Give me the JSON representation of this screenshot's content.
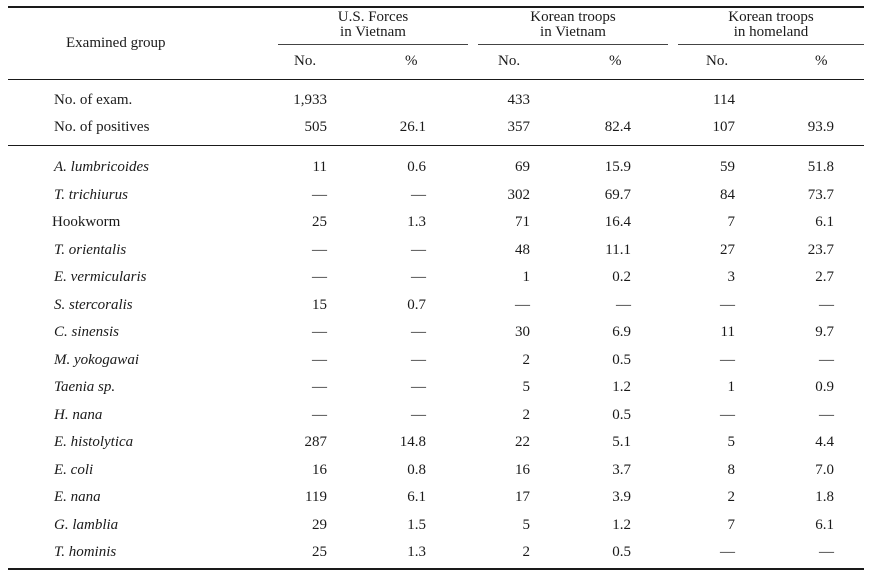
{
  "header": {
    "examined_group": "Examined group",
    "groups": [
      {
        "line1": "U.S. Forces",
        "line2": "in Vietnam"
      },
      {
        "line1": "Korean troops",
        "line2": "in Vietnam"
      },
      {
        "line1": "Korean troops",
        "line2": "in homeland"
      }
    ],
    "no_label": "No.",
    "pct_label": "%"
  },
  "summary_rows": [
    {
      "label": "No. of exam.",
      "cells": [
        "1,933",
        "",
        "433",
        "",
        "114",
        ""
      ]
    },
    {
      "label": "No. of positives",
      "cells": [
        "505",
        "26.1",
        "357",
        "82.4",
        "107",
        "93.9"
      ]
    }
  ],
  "parasite_rows": [
    {
      "label": "A. lumbricoides",
      "italic": true,
      "cells": [
        "11",
        "0.6",
        "69",
        "15.9",
        "59",
        "51.8"
      ]
    },
    {
      "label": "T. trichiurus",
      "italic": true,
      "cells": [
        "—",
        "—",
        "302",
        "69.7",
        "84",
        "73.7"
      ]
    },
    {
      "label": "Hookworm",
      "italic": false,
      "cells": [
        "25",
        "1.3",
        "71",
        "16.4",
        "7",
        "6.1"
      ]
    },
    {
      "label": "T. orientalis",
      "italic": true,
      "cells": [
        "—",
        "—",
        "48",
        "11.1",
        "27",
        "23.7"
      ]
    },
    {
      "label": "E. vermicularis",
      "italic": true,
      "cells": [
        "—",
        "—",
        "1",
        "0.2",
        "3",
        "2.7"
      ]
    },
    {
      "label": "S. stercoralis",
      "italic": true,
      "cells": [
        "15",
        "0.7",
        "—",
        "—",
        "—",
        "—"
      ]
    },
    {
      "label": "C. sinensis",
      "italic": true,
      "cells": [
        "—",
        "—",
        "30",
        "6.9",
        "11",
        "9.7"
      ]
    },
    {
      "label": "M. yokogawai",
      "italic": true,
      "cells": [
        "—",
        "—",
        "2",
        "0.5",
        "—",
        "—"
      ]
    },
    {
      "label": "Taenia sp.",
      "italic": true,
      "cells": [
        "—",
        "—",
        "5",
        "1.2",
        "1",
        "0.9"
      ]
    },
    {
      "label": "H. nana",
      "italic": true,
      "cells": [
        "—",
        "—",
        "2",
        "0.5",
        "—",
        "—"
      ]
    },
    {
      "label": "E. histolytica",
      "italic": true,
      "cells": [
        "287",
        "14.8",
        "22",
        "5.1",
        "5",
        "4.4"
      ]
    },
    {
      "label": "E. coli",
      "italic": true,
      "cells": [
        "16",
        "0.8",
        "16",
        "3.7",
        "8",
        "7.0"
      ]
    },
    {
      "label": "E. nana",
      "italic": true,
      "cells": [
        "119",
        "6.1",
        "17",
        "3.9",
        "2",
        "1.8"
      ]
    },
    {
      "label": "G. lamblia",
      "italic": true,
      "cells": [
        "29",
        "1.5",
        "5",
        "1.2",
        "7",
        "6.1"
      ]
    },
    {
      "label": "T. hominis",
      "italic": true,
      "cells": [
        "25",
        "1.3",
        "2",
        "0.5",
        "—",
        "—"
      ]
    }
  ]
}
